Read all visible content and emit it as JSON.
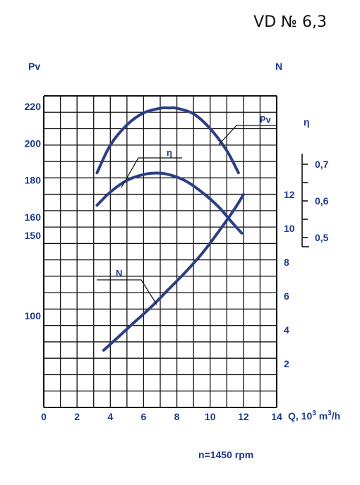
{
  "title": "VD  № 6,3",
  "footer": "n=1450 rpm",
  "colors": {
    "text": "#1f3a8c",
    "curve": "#2b3f86",
    "grid": "#111111",
    "title": "#111111"
  },
  "chart_data": {
    "type": "line",
    "title": "VD  № 6,3",
    "xlabel": "Q, 10³ m³/h",
    "xlim": [
      0,
      14
    ],
    "x_ticks": [
      {
        "v": 0,
        "t": "0"
      },
      {
        "v": 2,
        "t": "2"
      },
      {
        "v": 4,
        "t": "4"
      },
      {
        "v": 6,
        "t": "6"
      },
      {
        "v": 8,
        "t": "8"
      },
      {
        "v": 10,
        "t": "10"
      },
      {
        "v": 12,
        "t": "12"
      },
      {
        "v": 14,
        "t": "14"
      }
    ],
    "grid": true,
    "axes": {
      "pv": {
        "label": "Pv",
        "ticks": [
          {
            "v": 220,
            "t": "220"
          },
          {
            "v": 200,
            "t": "200"
          },
          {
            "v": 180,
            "t": "180"
          },
          {
            "v": 160,
            "t": "160"
          },
          {
            "v": 150,
            "t": "150"
          },
          {
            "v": 100,
            "t": "100"
          }
        ]
      },
      "n": {
        "label": "N",
        "ticks": [
          {
            "v": 12,
            "t": "12"
          },
          {
            "v": 10,
            "t": "10"
          },
          {
            "v": 8,
            "t": "8"
          },
          {
            "v": 6,
            "t": "6"
          },
          {
            "v": 4,
            "t": "4"
          },
          {
            "v": 2,
            "t": "2"
          }
        ]
      },
      "eta": {
        "label": "η",
        "ticks": [
          {
            "v": 0.7,
            "t": "0,7"
          },
          {
            "v": 0.6,
            "t": "0,6"
          },
          {
            "v": 0.5,
            "t": "0,5"
          }
        ]
      }
    },
    "series": [
      {
        "name": "Pv",
        "axis": "pv",
        "points": [
          [
            3.2,
            184
          ],
          [
            4.0,
            199
          ],
          [
            5.0,
            210
          ],
          [
            6.0,
            216.5
          ],
          [
            7.0,
            219
          ],
          [
            7.5,
            219.2
          ],
          [
            8.0,
            219
          ],
          [
            9.0,
            216
          ],
          [
            10.0,
            208
          ],
          [
            11.0,
            196
          ],
          [
            11.7,
            184
          ]
        ]
      },
      {
        "name": "η",
        "axis": "eta",
        "points": [
          [
            3.2,
            0.588
          ],
          [
            4.0,
            0.624
          ],
          [
            5.0,
            0.656
          ],
          [
            6.0,
            0.672
          ],
          [
            6.8,
            0.676
          ],
          [
            7.5,
            0.672
          ],
          [
            8.5,
            0.655
          ],
          [
            9.5,
            0.624
          ],
          [
            10.5,
            0.584
          ],
          [
            11.3,
            0.542
          ],
          [
            11.9,
            0.512
          ]
        ]
      },
      {
        "name": "N",
        "axis": "n",
        "points": [
          [
            3.6,
            2.8
          ],
          [
            4.5,
            3.6
          ],
          [
            5.5,
            4.5
          ],
          [
            6.5,
            5.4
          ],
          [
            7.5,
            6.4
          ],
          [
            8.5,
            7.4
          ],
          [
            9.5,
            8.5
          ],
          [
            10.5,
            9.8
          ],
          [
            11.5,
            11.2
          ],
          [
            12.0,
            12.0
          ]
        ]
      }
    ]
  }
}
